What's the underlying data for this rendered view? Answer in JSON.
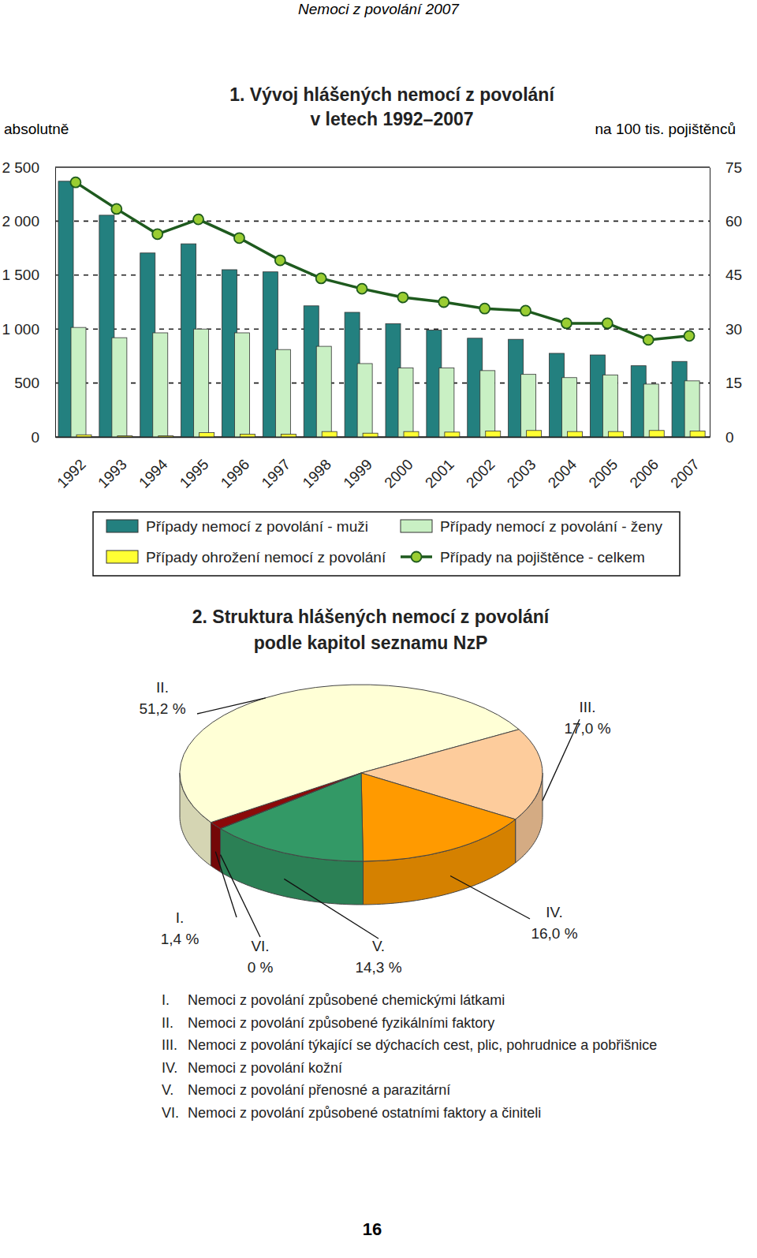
{
  "header": "Nemoci z povolání 2007",
  "page_number": "16",
  "chart_data": [
    {
      "type": "bar",
      "title": [
        "1. Vývoj hlášených nemocí z povolání",
        "v letech 1992–2007"
      ],
      "y_label": "absolutně",
      "y2_label": "na 100 tis. pojištěnců",
      "categories": [
        "1992",
        "1993",
        "1994",
        "1995",
        "1996",
        "1997",
        "1998",
        "1999",
        "2000",
        "2001",
        "2002",
        "2003",
        "2004",
        "2005",
        "2006",
        "2007"
      ],
      "ylim": [
        0,
        2500
      ],
      "yticks": [
        0,
        500,
        {
          "value": 1000,
          "label": "1 000"
        },
        {
          "value": 1500,
          "label": "1 500"
        },
        {
          "value": 2000,
          "label": "2 000"
        },
        {
          "value": 2500,
          "label": "2 500"
        }
      ],
      "y2lim": [
        0,
        75
      ],
      "y2ticks": [
        0,
        15,
        30,
        45,
        60,
        75
      ],
      "grid": true,
      "legend": "bottom",
      "series": [
        {
          "name": "Případy nemocí z povolání - muži",
          "type": "bar",
          "color": "#23807f",
          "values": [
            2370,
            2055,
            1705,
            1790,
            1550,
            1530,
            1215,
            1155,
            1050,
            990,
            915,
            905,
            775,
            760,
            660,
            700
          ]
        },
        {
          "name": "Případy nemocí z povolání - ženy",
          "type": "bar",
          "color": "#c9f0c4",
          "values": [
            1015,
            920,
            965,
            1000,
            965,
            810,
            840,
            680,
            640,
            640,
            615,
            580,
            550,
            575,
            490,
            520
          ]
        },
        {
          "name": "Případy ohrožení nemocí z povolání",
          "type": "bar",
          "color": "#ffff33",
          "values": [
            20,
            10,
            10,
            40,
            25,
            25,
            50,
            35,
            50,
            45,
            55,
            60,
            50,
            50,
            60,
            55
          ]
        },
        {
          "name": "Případy na pojištěnce - celkem",
          "type": "line",
          "axis": "y2",
          "color": "#1e5a1e",
          "marker": "circle",
          "values": [
            70.8,
            63.4,
            56.4,
            60.5,
            55.3,
            49.1,
            44.1,
            41.2,
            38.8,
            37.5,
            35.7,
            35.1,
            31.6,
            31.6,
            27.0,
            28.1
          ]
        }
      ]
    },
    {
      "type": "pie",
      "title": [
        "2. Struktura hlášených nemocí z povolání",
        "podle kapitol seznamu NzP"
      ],
      "categories": [
        "I.",
        "II.",
        "III.",
        "IV.",
        "V.",
        "VI."
      ],
      "values": [
        1.4,
        51.2,
        17.0,
        16.0,
        14.3,
        0
      ],
      "value_labels": [
        "1,4 %",
        "51,2 %",
        "17,0 %",
        "16,0 %",
        "14,3 %",
        "0 %"
      ],
      "colors": [
        "#8b0a0a",
        "#ffffd6",
        "#fdcc9c",
        "#ff9a00",
        "#339966",
        "#ccffcc"
      ],
      "data_labels": true,
      "annotations": [
        "Nemoci z povolání způsobené chemickými látkami",
        "Nemoci z povolání způsobené fyzikálními faktory",
        "Nemoci z povolání týkající se dýchacích cest, plic, pohrudnice a pobřišnice",
        "Nemoci z povolání kožní",
        "Nemoci z povolání přenosné a parazitární",
        "Nemoci z povolání způsobené ostatními faktory a činiteli"
      ]
    }
  ]
}
